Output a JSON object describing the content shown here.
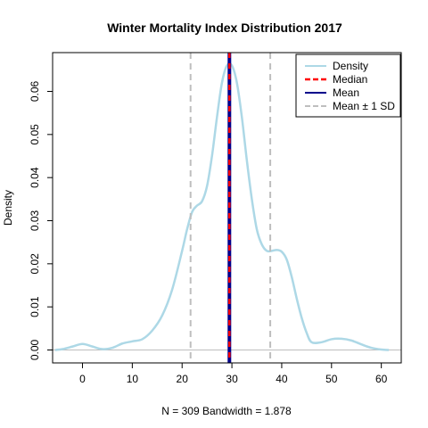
{
  "chart_data": {
    "type": "area",
    "title": "Winter Mortality Index Distribution 2017",
    "xlabel": "N = 309   Bandwidth = 1.878",
    "ylabel": "Density",
    "xlim": [
      -6,
      64
    ],
    "ylim": [
      -0.003,
      0.069
    ],
    "x_ticks": [
      0,
      10,
      20,
      30,
      40,
      50,
      60
    ],
    "x_tick_labels": [
      "0",
      "10",
      "20",
      "30",
      "40",
      "50",
      "60"
    ],
    "y_ticks": [
      0,
      0.01,
      0.02,
      0.03,
      0.04,
      0.05,
      0.06
    ],
    "y_tick_labels": [
      "0.00",
      "0.01",
      "0.02",
      "0.03",
      "0.04",
      "0.05",
      "0.06"
    ],
    "grid": false,
    "legend_position": "top-right",
    "series": [
      {
        "name": "Density",
        "color": "#ADD8E6",
        "style": "solid",
        "x": [
          -5.5,
          -4,
          -2,
          0,
          2,
          4,
          6,
          8,
          10,
          12,
          14,
          16,
          18,
          20,
          21,
          22,
          23,
          24,
          25,
          26,
          27,
          28,
          29,
          30,
          31,
          32,
          33,
          34,
          35,
          36,
          37,
          38,
          39,
          40,
          41,
          42,
          43,
          44,
          45,
          46,
          48,
          50,
          52,
          54,
          56,
          58,
          60,
          61.5
        ],
        "y": [
          0.0,
          0.0002,
          0.0008,
          0.0014,
          0.0008,
          0.0002,
          0.0005,
          0.0015,
          0.002,
          0.0025,
          0.0045,
          0.008,
          0.014,
          0.023,
          0.028,
          0.032,
          0.0335,
          0.0345,
          0.038,
          0.045,
          0.054,
          0.062,
          0.066,
          0.066,
          0.062,
          0.054,
          0.044,
          0.035,
          0.028,
          0.0245,
          0.023,
          0.023,
          0.0232,
          0.0228,
          0.021,
          0.017,
          0.012,
          0.0075,
          0.004,
          0.0018,
          0.0018,
          0.0025,
          0.0026,
          0.0022,
          0.0013,
          0.0005,
          0.0001,
          0.0
        ]
      },
      {
        "name": "Median",
        "color": "#FF0000",
        "style": "dashed",
        "x": [
          29.5
        ]
      },
      {
        "name": "Mean",
        "color": "#00008B",
        "style": "solid",
        "x": [
          29.5
        ]
      },
      {
        "name": "Mean ± 1 SD",
        "color": "#BEBEBE",
        "style": "dashed",
        "x": [
          21.7,
          37.7
        ]
      }
    ],
    "baseline": {
      "y": 0,
      "color": "#BEBEBE"
    }
  }
}
